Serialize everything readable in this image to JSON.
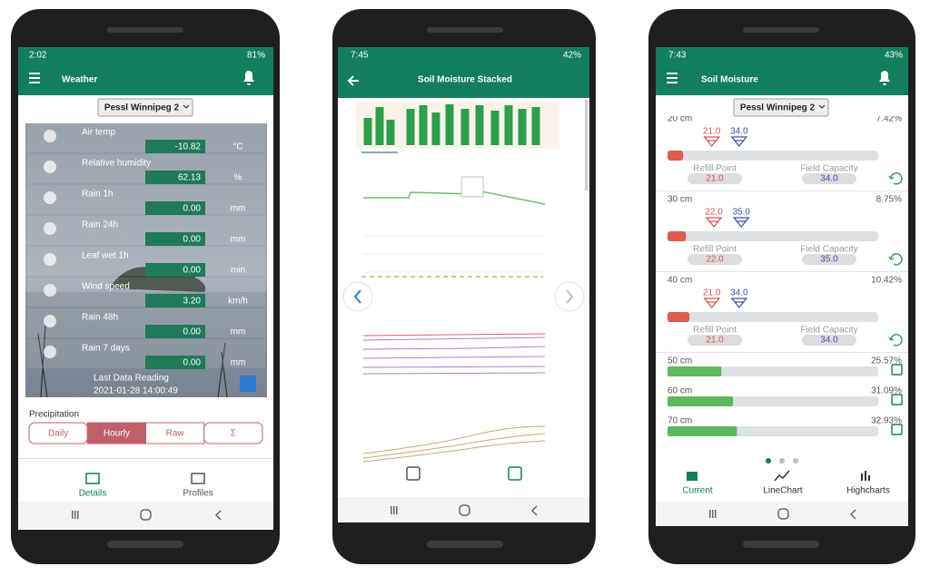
{
  "phones": [
    {
      "status": {
        "time": "2:02",
        "battery": "81%"
      },
      "title": "Weather",
      "station": "Pessl Winnipeg 2",
      "sensors": [
        {
          "label": "Air temp",
          "value": "-10.82",
          "unit": "°C"
        },
        {
          "label": "Relative humidity",
          "value": "62.13",
          "unit": "%"
        },
        {
          "label": "Rain 1h",
          "value": "0.00",
          "unit": "mm"
        },
        {
          "label": "Rain 24h",
          "value": "0.00",
          "unit": "mm"
        },
        {
          "label": "Leaf wet 1h",
          "value": "0.00",
          "unit": "min"
        },
        {
          "label": "Wind speed",
          "value": "3.20",
          "unit": "km/h"
        },
        {
          "label": "Rain 48h",
          "value": "0.00",
          "unit": "mm"
        },
        {
          "label": "Rain 7 days",
          "value": "0.00",
          "unit": "mm"
        }
      ],
      "last_reading": {
        "label": "Last Data Reading",
        "time": "2021-01-28 14:00:49"
      },
      "precipitation": {
        "title": "Precipitation",
        "tabs": [
          "Daily",
          "Hourly",
          "Raw",
          "Σ"
        ],
        "selected": 1
      },
      "nav": [
        "Details",
        "Profiles"
      ]
    },
    {
      "status": {
        "time": "7:45",
        "battery": "42%"
      },
      "title": "Soil Moisture Stacked"
    },
    {
      "status": {
        "time": "7:43",
        "battery": "43%"
      },
      "title": "Soil Moisture",
      "station": "Pessl Winnipeg 2",
      "depths": [
        {
          "label": "20 cm",
          "moisture": 7.42,
          "moisture_label": "7.42%",
          "refill": {
            "name": "Refill Point",
            "value": 21,
            "label": "21.0"
          },
          "field": {
            "name": "Field Capacity",
            "value": 34,
            "label": "34.0"
          }
        },
        {
          "label": "30 cm",
          "moisture": 8.75,
          "moisture_label": "8.75%",
          "refill": {
            "name": "Refill Point",
            "value": 22,
            "label": "22.0"
          },
          "field": {
            "name": "Field Capacity",
            "value": 35,
            "label": "35.0"
          }
        },
        {
          "label": "40 cm",
          "moisture": 10.42,
          "moisture_label": "10.42%",
          "refill": {
            "name": "Refill Point",
            "value": 21,
            "label": "21.0"
          },
          "field": {
            "name": "Field Capacity",
            "value": 34,
            "label": "34.0"
          }
        },
        {
          "label": "50 cm",
          "moisture": 25.57,
          "moisture_label": "25.57%"
        },
        {
          "label": "60 cm",
          "moisture": 31.09,
          "moisture_label": "31.09%"
        },
        {
          "label": "70 cm",
          "moisture": 32.93,
          "moisture_label": "32.93%"
        }
      ],
      "nav": [
        "Current",
        "LineChart",
        "Highcharts"
      ]
    }
  ]
}
